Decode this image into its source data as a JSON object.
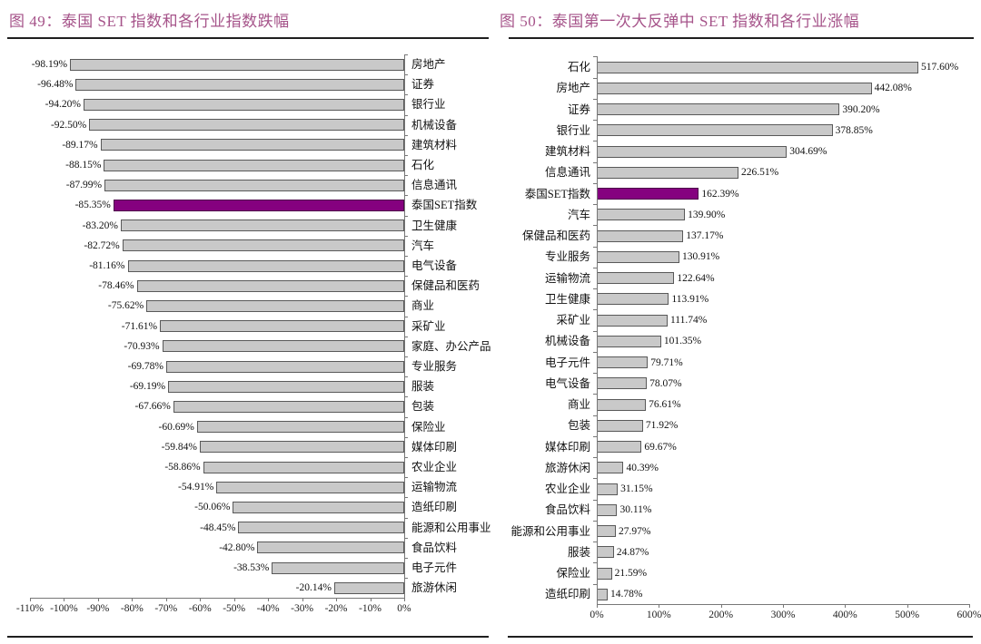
{
  "chart_data": [
    {
      "type": "bar",
      "orientation": "horizontal",
      "direction": "negative-left",
      "title": "图 49：泰国 SET 指数和各行业指数跌幅",
      "categories": [
        "房地产",
        "证券",
        "银行业",
        "机械设备",
        "建筑材料",
        "石化",
        "信息通讯",
        "泰国SET指数",
        "卫生健康",
        "汽车",
        "电气设备",
        "保健品和医药",
        "商业",
        "采矿业",
        "家庭、办公产品",
        "专业服务",
        "服装",
        "包装",
        "保险业",
        "媒体印刷",
        "农业企业",
        "运输物流",
        "造纸印刷",
        "能源和公用事业",
        "食品饮料",
        "电子元件",
        "旅游休闲"
      ],
      "values": [
        -98.19,
        -96.48,
        -94.2,
        -92.5,
        -89.17,
        -88.15,
        -87.99,
        -85.35,
        -83.2,
        -82.72,
        -81.16,
        -78.46,
        -75.62,
        -71.61,
        -70.93,
        -69.78,
        -69.19,
        -67.66,
        -60.69,
        -59.84,
        -58.86,
        -54.91,
        -50.06,
        -48.45,
        -42.8,
        -38.53,
        -20.14
      ],
      "value_labels": [
        "-98.19%",
        "-96.48%",
        "-94.20%",
        "-92.50%",
        "-89.17%",
        "-88.15%",
        "-87.99%",
        "-85.35%",
        "-83.20%",
        "-82.72%",
        "-81.16%",
        "-78.46%",
        "-75.62%",
        "-71.61%",
        "-70.93%",
        "-69.78%",
        "-69.19%",
        "-67.66%",
        "-60.69%",
        "-59.84%",
        "-58.86%",
        "-54.91%",
        "-50.06%",
        "-48.45%",
        "-42.80%",
        "-38.53%",
        "-20.14%"
      ],
      "highlight_category": "泰国SET指数",
      "highlight_index": 7,
      "xlim": [
        -110,
        0
      ],
      "axis_ticks": [
        "-110%",
        "-100%",
        "-90%",
        "-80%",
        "-70%",
        "-60%",
        "-50%",
        "-40%",
        "-30%",
        "-20%",
        "-10%",
        "0%"
      ],
      "grid": false,
      "legend": false,
      "colors": {
        "bar": "#c9c9c9",
        "bar_border": "#595959",
        "highlight": "#85017f",
        "title": "#a6548a",
        "axis": "#777777"
      }
    },
    {
      "type": "bar",
      "orientation": "horizontal",
      "direction": "positive-right",
      "title": "图 50：泰国第一次大反弹中 SET 指数和各行业涨幅",
      "categories": [
        "石化",
        "房地产",
        "证券",
        "银行业",
        "建筑材料",
        "信息通讯",
        "泰国SET指数",
        "汽车",
        "保健品和医药",
        "专业服务",
        "运输物流",
        "卫生健康",
        "采矿业",
        "机械设备",
        "电子元件",
        "电气设备",
        "商业",
        "包装",
        "媒体印刷",
        "旅游休闲",
        "农业企业",
        "食品饮料",
        "能源和公用事业",
        "服装",
        "保险业",
        "造纸印刷"
      ],
      "values": [
        517.6,
        442.08,
        390.2,
        378.85,
        304.69,
        226.51,
        162.39,
        139.9,
        137.17,
        130.91,
        122.64,
        113.91,
        111.74,
        101.35,
        79.71,
        78.07,
        76.61,
        71.92,
        69.67,
        40.39,
        31.15,
        30.11,
        27.97,
        24.87,
        21.59,
        14.78
      ],
      "value_labels": [
        "517.60%",
        "442.08%",
        "390.20%",
        "378.85%",
        "304.69%",
        "226.51%",
        "162.39%",
        "139.90%",
        "137.17%",
        "130.91%",
        "122.64%",
        "113.91%",
        "111.74%",
        "101.35%",
        "79.71%",
        "78.07%",
        "76.61%",
        "71.92%",
        "69.67%",
        "40.39%",
        "31.15%",
        "30.11%",
        "27.97%",
        "24.87%",
        "21.59%",
        "14.78%"
      ],
      "highlight_category": "泰国SET指数",
      "highlight_index": 6,
      "xlim": [
        0,
        600
      ],
      "axis_ticks": [
        "0%",
        "100%",
        "200%",
        "300%",
        "400%",
        "500%",
        "600%"
      ],
      "grid": false,
      "legend": false,
      "colors": {
        "bar": "#c9c9c9",
        "bar_border": "#595959",
        "highlight": "#85017f",
        "title": "#a6548a",
        "axis": "#777777"
      }
    }
  ]
}
